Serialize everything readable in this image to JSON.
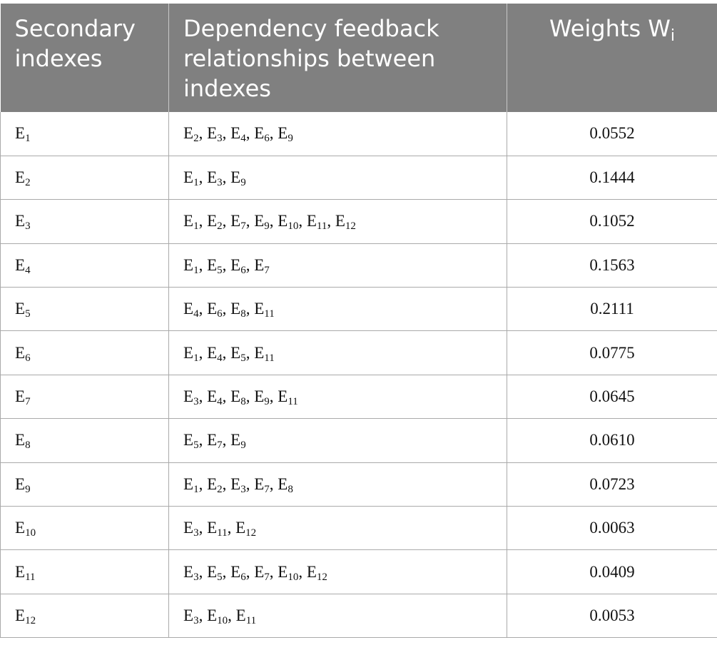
{
  "table": {
    "headers": {
      "col1": "Secondary indexes",
      "col2": "Dependency feedback relationships between indexes",
      "col3_main": "Weights W",
      "col3_sub": "i"
    },
    "rows": [
      {
        "index": "1",
        "deps": [
          "2",
          "3",
          "4",
          "6",
          "9"
        ],
        "weight": "0.0552"
      },
      {
        "index": "2",
        "deps": [
          "1",
          "3",
          "9"
        ],
        "weight": "0.1444"
      },
      {
        "index": "3",
        "deps": [
          "1",
          "2",
          "7",
          "9",
          "10",
          "11",
          "12"
        ],
        "weight": "0.1052"
      },
      {
        "index": "4",
        "deps": [
          "1",
          "5",
          "6",
          "7"
        ],
        "weight": "0.1563"
      },
      {
        "index": "5",
        "deps": [
          "4",
          "6",
          "8",
          "11"
        ],
        "weight": "0.2111"
      },
      {
        "index": "6",
        "deps": [
          "1",
          "4",
          "5",
          "11"
        ],
        "weight": "0.0775"
      },
      {
        "index": "7",
        "deps": [
          "3",
          "4",
          "8",
          "9",
          "11"
        ],
        "weight": "0.0645"
      },
      {
        "index": "8",
        "deps": [
          "5",
          "7",
          "9"
        ],
        "weight": "0.0610"
      },
      {
        "index": "9",
        "deps": [
          "1",
          "2",
          "3",
          "7",
          "8"
        ],
        "weight": "0.0723"
      },
      {
        "index": "10",
        "deps": [
          "3",
          "11",
          "12"
        ],
        "weight": "0.0063"
      },
      {
        "index": "11",
        "deps": [
          "3",
          "5",
          "6",
          "7",
          "10",
          "12"
        ],
        "weight": "0.0409"
      },
      {
        "index": "12",
        "deps": [
          "3",
          "10",
          "11"
        ],
        "weight": "0.0053"
      }
    ]
  }
}
